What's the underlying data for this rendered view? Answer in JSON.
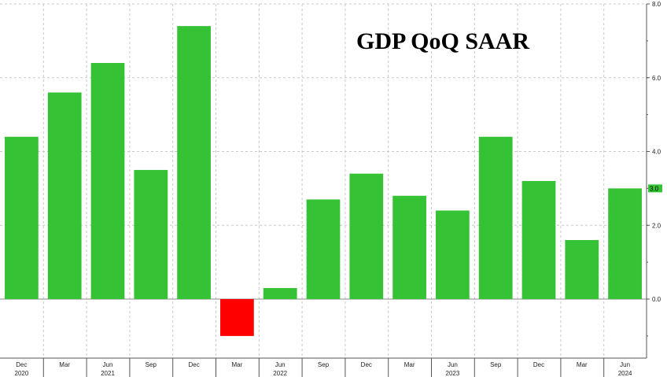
{
  "chart_data": {
    "type": "bar",
    "title": "GDP QoQ SAAR",
    "xlabel": "",
    "ylabel": "",
    "ylim": [
      -1.6,
      8.0
    ],
    "grid": true,
    "y_axis_side": "right",
    "yticks": [
      "0.0",
      "2.0",
      "4.0",
      "6.0",
      "8.0"
    ],
    "last_value_label": "3.0",
    "categories": [
      "Dec 2020",
      "Mar 2021",
      "Jun 2021",
      "Sep 2021",
      "Dec 2021",
      "Mar 2022",
      "Jun 2022",
      "Sep 2022",
      "Dec 2022",
      "Mar 2023",
      "Jun 2023",
      "Sep 2023",
      "Dec 2023",
      "Mar 2024",
      "Jun 2024"
    ],
    "values": [
      4.4,
      5.6,
      6.4,
      3.5,
      7.4,
      -1.0,
      0.3,
      2.7,
      3.4,
      2.8,
      2.4,
      4.4,
      3.2,
      1.6,
      3.0
    ],
    "bar_colors": {
      "positive": "#35c235",
      "negative": "#ff0000"
    },
    "month_labels": [
      "Dec",
      "Mar",
      "Jun",
      "Sep",
      "Dec",
      "Mar",
      "Jun",
      "Sep",
      "Dec",
      "Mar",
      "Jun",
      "Sep",
      "Dec",
      "Mar",
      "Jun"
    ],
    "year_labels": [
      "2020",
      "2021",
      "2022",
      "2023",
      "2024"
    ],
    "year_label_after_index": [
      0,
      2,
      6,
      10,
      14
    ]
  }
}
